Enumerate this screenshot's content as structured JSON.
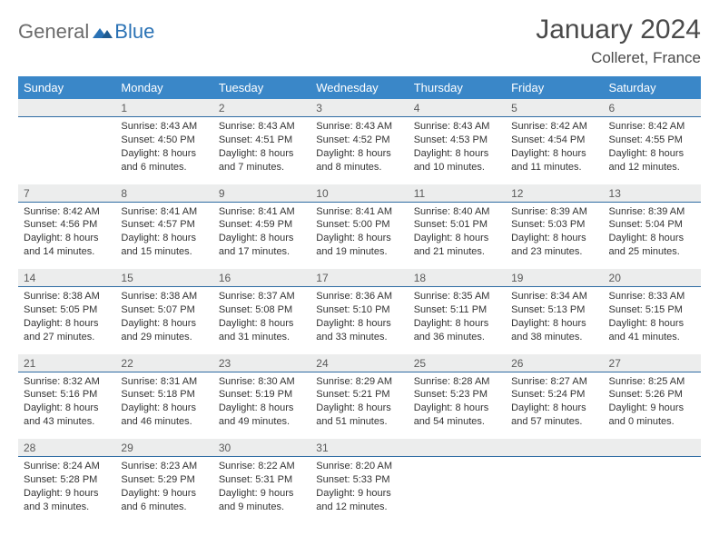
{
  "logo": {
    "general": "General",
    "blue": "Blue"
  },
  "title": {
    "month_year": "January 2024",
    "location": "Colleret, France"
  },
  "colors": {
    "header_bg": "#3a87c8",
    "header_text": "#ffffff",
    "daynum_bg": "#eceded",
    "daynum_border": "#2f6ca3",
    "body_text": "#333333",
    "logo_gray": "#6b6b6b",
    "logo_blue": "#2a72b5"
  },
  "day_headers": [
    "Sunday",
    "Monday",
    "Tuesday",
    "Wednesday",
    "Thursday",
    "Friday",
    "Saturday"
  ],
  "weeks": [
    {
      "nums": [
        "",
        "1",
        "2",
        "3",
        "4",
        "5",
        "6"
      ],
      "cells": [
        {
          "sunrise": "",
          "sunset": "",
          "daylight": ""
        },
        {
          "sunrise": "Sunrise: 8:43 AM",
          "sunset": "Sunset: 4:50 PM",
          "daylight": "Daylight: 8 hours and 6 minutes."
        },
        {
          "sunrise": "Sunrise: 8:43 AM",
          "sunset": "Sunset: 4:51 PM",
          "daylight": "Daylight: 8 hours and 7 minutes."
        },
        {
          "sunrise": "Sunrise: 8:43 AM",
          "sunset": "Sunset: 4:52 PM",
          "daylight": "Daylight: 8 hours and 8 minutes."
        },
        {
          "sunrise": "Sunrise: 8:43 AM",
          "sunset": "Sunset: 4:53 PM",
          "daylight": "Daylight: 8 hours and 10 minutes."
        },
        {
          "sunrise": "Sunrise: 8:42 AM",
          "sunset": "Sunset: 4:54 PM",
          "daylight": "Daylight: 8 hours and 11 minutes."
        },
        {
          "sunrise": "Sunrise: 8:42 AM",
          "sunset": "Sunset: 4:55 PM",
          "daylight": "Daylight: 8 hours and 12 minutes."
        }
      ]
    },
    {
      "nums": [
        "7",
        "8",
        "9",
        "10",
        "11",
        "12",
        "13"
      ],
      "cells": [
        {
          "sunrise": "Sunrise: 8:42 AM",
          "sunset": "Sunset: 4:56 PM",
          "daylight": "Daylight: 8 hours and 14 minutes."
        },
        {
          "sunrise": "Sunrise: 8:41 AM",
          "sunset": "Sunset: 4:57 PM",
          "daylight": "Daylight: 8 hours and 15 minutes."
        },
        {
          "sunrise": "Sunrise: 8:41 AM",
          "sunset": "Sunset: 4:59 PM",
          "daylight": "Daylight: 8 hours and 17 minutes."
        },
        {
          "sunrise": "Sunrise: 8:41 AM",
          "sunset": "Sunset: 5:00 PM",
          "daylight": "Daylight: 8 hours and 19 minutes."
        },
        {
          "sunrise": "Sunrise: 8:40 AM",
          "sunset": "Sunset: 5:01 PM",
          "daylight": "Daylight: 8 hours and 21 minutes."
        },
        {
          "sunrise": "Sunrise: 8:39 AM",
          "sunset": "Sunset: 5:03 PM",
          "daylight": "Daylight: 8 hours and 23 minutes."
        },
        {
          "sunrise": "Sunrise: 8:39 AM",
          "sunset": "Sunset: 5:04 PM",
          "daylight": "Daylight: 8 hours and 25 minutes."
        }
      ]
    },
    {
      "nums": [
        "14",
        "15",
        "16",
        "17",
        "18",
        "19",
        "20"
      ],
      "cells": [
        {
          "sunrise": "Sunrise: 8:38 AM",
          "sunset": "Sunset: 5:05 PM",
          "daylight": "Daylight: 8 hours and 27 minutes."
        },
        {
          "sunrise": "Sunrise: 8:38 AM",
          "sunset": "Sunset: 5:07 PM",
          "daylight": "Daylight: 8 hours and 29 minutes."
        },
        {
          "sunrise": "Sunrise: 8:37 AM",
          "sunset": "Sunset: 5:08 PM",
          "daylight": "Daylight: 8 hours and 31 minutes."
        },
        {
          "sunrise": "Sunrise: 8:36 AM",
          "sunset": "Sunset: 5:10 PM",
          "daylight": "Daylight: 8 hours and 33 minutes."
        },
        {
          "sunrise": "Sunrise: 8:35 AM",
          "sunset": "Sunset: 5:11 PM",
          "daylight": "Daylight: 8 hours and 36 minutes."
        },
        {
          "sunrise": "Sunrise: 8:34 AM",
          "sunset": "Sunset: 5:13 PM",
          "daylight": "Daylight: 8 hours and 38 minutes."
        },
        {
          "sunrise": "Sunrise: 8:33 AM",
          "sunset": "Sunset: 5:15 PM",
          "daylight": "Daylight: 8 hours and 41 minutes."
        }
      ]
    },
    {
      "nums": [
        "21",
        "22",
        "23",
        "24",
        "25",
        "26",
        "27"
      ],
      "cells": [
        {
          "sunrise": "Sunrise: 8:32 AM",
          "sunset": "Sunset: 5:16 PM",
          "daylight": "Daylight: 8 hours and 43 minutes."
        },
        {
          "sunrise": "Sunrise: 8:31 AM",
          "sunset": "Sunset: 5:18 PM",
          "daylight": "Daylight: 8 hours and 46 minutes."
        },
        {
          "sunrise": "Sunrise: 8:30 AM",
          "sunset": "Sunset: 5:19 PM",
          "daylight": "Daylight: 8 hours and 49 minutes."
        },
        {
          "sunrise": "Sunrise: 8:29 AM",
          "sunset": "Sunset: 5:21 PM",
          "daylight": "Daylight: 8 hours and 51 minutes."
        },
        {
          "sunrise": "Sunrise: 8:28 AM",
          "sunset": "Sunset: 5:23 PM",
          "daylight": "Daylight: 8 hours and 54 minutes."
        },
        {
          "sunrise": "Sunrise: 8:27 AM",
          "sunset": "Sunset: 5:24 PM",
          "daylight": "Daylight: 8 hours and 57 minutes."
        },
        {
          "sunrise": "Sunrise: 8:25 AM",
          "sunset": "Sunset: 5:26 PM",
          "daylight": "Daylight: 9 hours and 0 minutes."
        }
      ]
    },
    {
      "nums": [
        "28",
        "29",
        "30",
        "31",
        "",
        "",
        ""
      ],
      "cells": [
        {
          "sunrise": "Sunrise: 8:24 AM",
          "sunset": "Sunset: 5:28 PM",
          "daylight": "Daylight: 9 hours and 3 minutes."
        },
        {
          "sunrise": "Sunrise: 8:23 AM",
          "sunset": "Sunset: 5:29 PM",
          "daylight": "Daylight: 9 hours and 6 minutes."
        },
        {
          "sunrise": "Sunrise: 8:22 AM",
          "sunset": "Sunset: 5:31 PM",
          "daylight": "Daylight: 9 hours and 9 minutes."
        },
        {
          "sunrise": "Sunrise: 8:20 AM",
          "sunset": "Sunset: 5:33 PM",
          "daylight": "Daylight: 9 hours and 12 minutes."
        },
        {
          "sunrise": "",
          "sunset": "",
          "daylight": ""
        },
        {
          "sunrise": "",
          "sunset": "",
          "daylight": ""
        },
        {
          "sunrise": "",
          "sunset": "",
          "daylight": ""
        }
      ]
    }
  ]
}
